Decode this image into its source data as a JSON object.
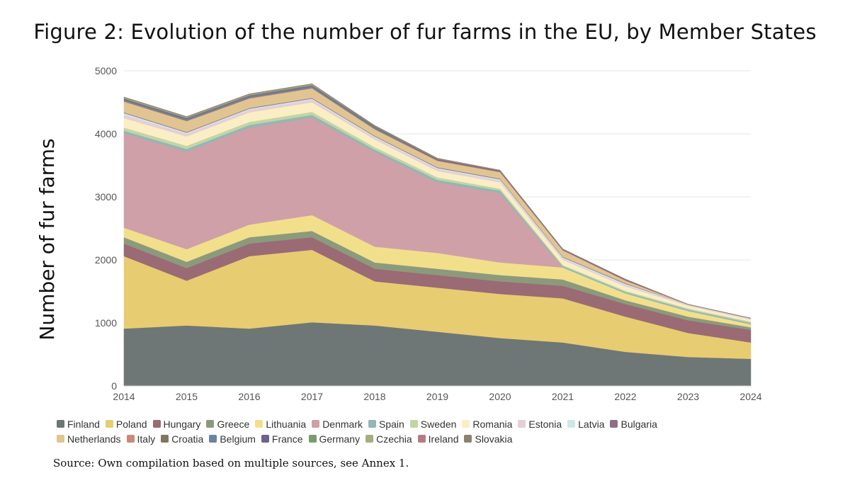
{
  "title": "Figure 2: Evolution of the number of fur farms in the EU, by Member States",
  "source": "Source: Own compilation based on multiple sources, see Annex 1.",
  "chart_data": {
    "type": "area",
    "stacked": true,
    "ylabel": "Number of fur farms",
    "xlabel": "",
    "ylim": [
      0,
      5000
    ],
    "yticks": [
      0,
      1000,
      2000,
      3000,
      4000,
      5000
    ],
    "grid": true,
    "legend_position": "bottom",
    "x": [
      "2014",
      "2015",
      "2016",
      "2017",
      "2018",
      "2019",
      "2020",
      "2021",
      "2022",
      "2023",
      "2024"
    ],
    "series": [
      {
        "name": "Finland",
        "color": "#6f7676",
        "values": [
          910,
          960,
          910,
          1010,
          960,
          860,
          760,
          690,
          540,
          460,
          430
        ]
      },
      {
        "name": "Poland",
        "color": "#e7cc72",
        "values": [
          1150,
          710,
          1150,
          1150,
          700,
          700,
          700,
          700,
          560,
          380,
          260
        ]
      },
      {
        "name": "Hungary",
        "color": "#9a6b74",
        "values": [
          200,
          200,
          200,
          200,
          200,
          200,
          200,
          200,
          200,
          200,
          200
        ]
      },
      {
        "name": "Greece",
        "color": "#8c9a7c",
        "values": [
          100,
          100,
          100,
          100,
          100,
          100,
          100,
          100,
          60,
          60,
          40
        ]
      },
      {
        "name": "Lithuania",
        "color": "#f2df8c",
        "values": [
          150,
          200,
          200,
          250,
          250,
          250,
          200,
          190,
          110,
          90,
          50
        ]
      },
      {
        "name": "Denmark",
        "color": "#cfa0a8",
        "values": [
          1500,
          1550,
          1540,
          1550,
          1500,
          1120,
          1100,
          0,
          0,
          0,
          0
        ]
      },
      {
        "name": "Spain",
        "color": "#8fb8b4",
        "values": [
          40,
          40,
          40,
          40,
          40,
          40,
          40,
          20,
          20,
          20,
          20
        ]
      },
      {
        "name": "Sweden",
        "color": "#c3d4a6",
        "values": [
          50,
          50,
          50,
          50,
          40,
          40,
          30,
          20,
          20,
          20,
          20
        ]
      },
      {
        "name": "Romania",
        "color": "#fbeec4",
        "values": [
          150,
          150,
          150,
          150,
          120,
          100,
          100,
          80,
          70,
          40,
          30
        ]
      },
      {
        "name": "Estonia",
        "color": "#e6ced6",
        "values": [
          50,
          40,
          40,
          40,
          30,
          30,
          30,
          20,
          20,
          10,
          10
        ]
      },
      {
        "name": "Latvia",
        "color": "#cfe7e4",
        "values": [
          30,
          20,
          20,
          20,
          20,
          20,
          20,
          20,
          20,
          10,
          10
        ]
      },
      {
        "name": "Bulgaria",
        "color": "#8e6e86",
        "values": [
          10,
          10,
          10,
          10,
          10,
          10,
          10,
          10,
          10,
          0,
          0
        ]
      },
      {
        "name": "Netherlands",
        "color": "#e0c592",
        "values": [
          170,
          170,
          150,
          150,
          100,
          100,
          100,
          100,
          40,
          0,
          0
        ]
      },
      {
        "name": "Italy",
        "color": "#c98a79",
        "values": [
          10,
          10,
          10,
          10,
          10,
          10,
          10,
          10,
          10,
          5,
          5
        ]
      },
      {
        "name": "Croatia",
        "color": "#7e7860",
        "values": [
          5,
          5,
          5,
          5,
          5,
          5,
          5,
          0,
          0,
          0,
          0
        ]
      },
      {
        "name": "Belgium",
        "color": "#6a83a3",
        "values": [
          20,
          20,
          20,
          20,
          20,
          0,
          0,
          0,
          0,
          0,
          0
        ]
      },
      {
        "name": "France",
        "color": "#6f6190",
        "values": [
          10,
          10,
          10,
          10,
          10,
          10,
          10,
          10,
          10,
          0,
          0
        ]
      },
      {
        "name": "Germany",
        "color": "#7c9a72",
        "values": [
          10,
          10,
          10,
          10,
          10,
          10,
          0,
          0,
          0,
          0,
          0
        ]
      },
      {
        "name": "Czechia",
        "color": "#a9ad7e",
        "values": [
          10,
          10,
          10,
          10,
          0,
          0,
          0,
          0,
          0,
          0,
          0
        ]
      },
      {
        "name": "Ireland",
        "color": "#b57a86",
        "values": [
          5,
          5,
          5,
          5,
          5,
          5,
          5,
          0,
          0,
          0,
          0
        ]
      },
      {
        "name": "Slovakia",
        "color": "#8e8070",
        "values": [
          5,
          5,
          5,
          5,
          5,
          5,
          5,
          5,
          5,
          0,
          0
        ]
      }
    ],
    "legend_rows": [
      [
        "Finland",
        "Poland",
        "Hungary",
        "Greece",
        "Lithuania",
        "Denmark",
        "Spain",
        "Sweden",
        "Romania",
        "Estonia",
        "Latvia",
        "Bulgaria"
      ],
      [
        "Netherlands",
        "Italy",
        "Croatia",
        "Belgium",
        "France",
        "Germany",
        "Czechia",
        "Ireland",
        "Slovakia"
      ]
    ]
  }
}
